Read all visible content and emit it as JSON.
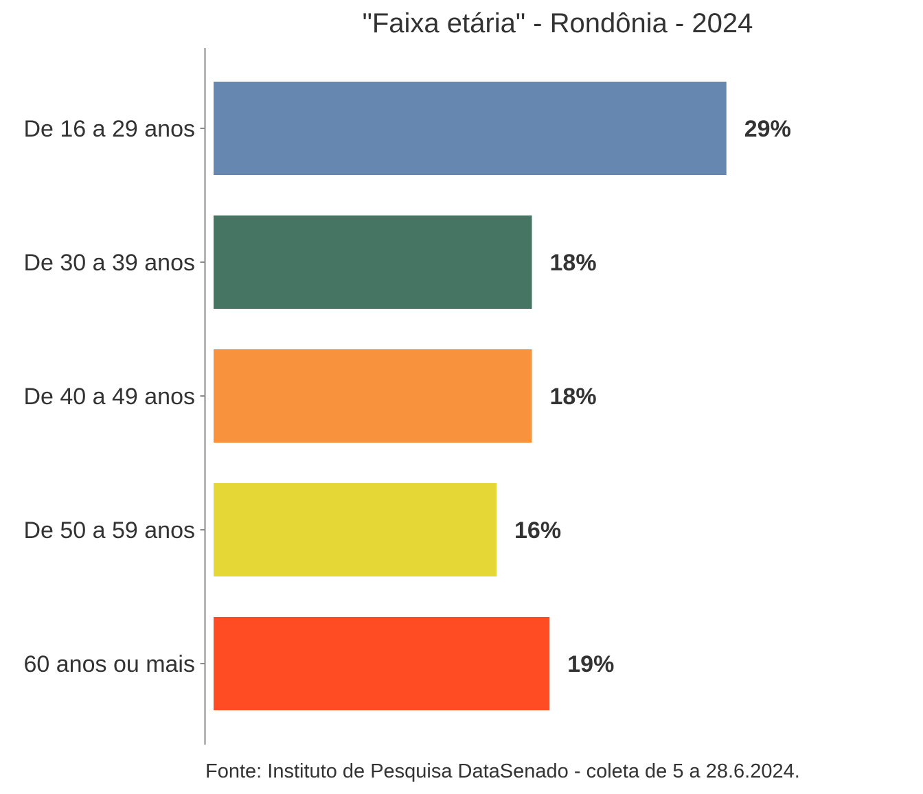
{
  "chart_data": {
    "type": "bar",
    "orientation": "horizontal",
    "title": "\"Faixa etária\" - Rondônia - 2024",
    "categories": [
      "De 16 a 29 anos",
      "De 30 a 39 anos",
      "De 40 a 49 anos",
      "De 50 a 59 anos",
      "60 anos ou mais"
    ],
    "values": [
      29,
      18,
      18,
      16,
      19
    ],
    "value_labels": [
      "29%",
      "18%",
      "18%",
      "16%",
      "19%"
    ],
    "colors": [
      "#6688B0",
      "#467563",
      "#F9923C",
      "#E5D836",
      "#FF4C22"
    ],
    "xlim": [
      0,
      30
    ],
    "unit": "%",
    "grid": false,
    "legend": "none",
    "xlabel": "",
    "ylabel": ""
  },
  "source_note": "Fonte: Instituto de Pesquisa DataSenado - coleta de 5 a 28.6.2024."
}
